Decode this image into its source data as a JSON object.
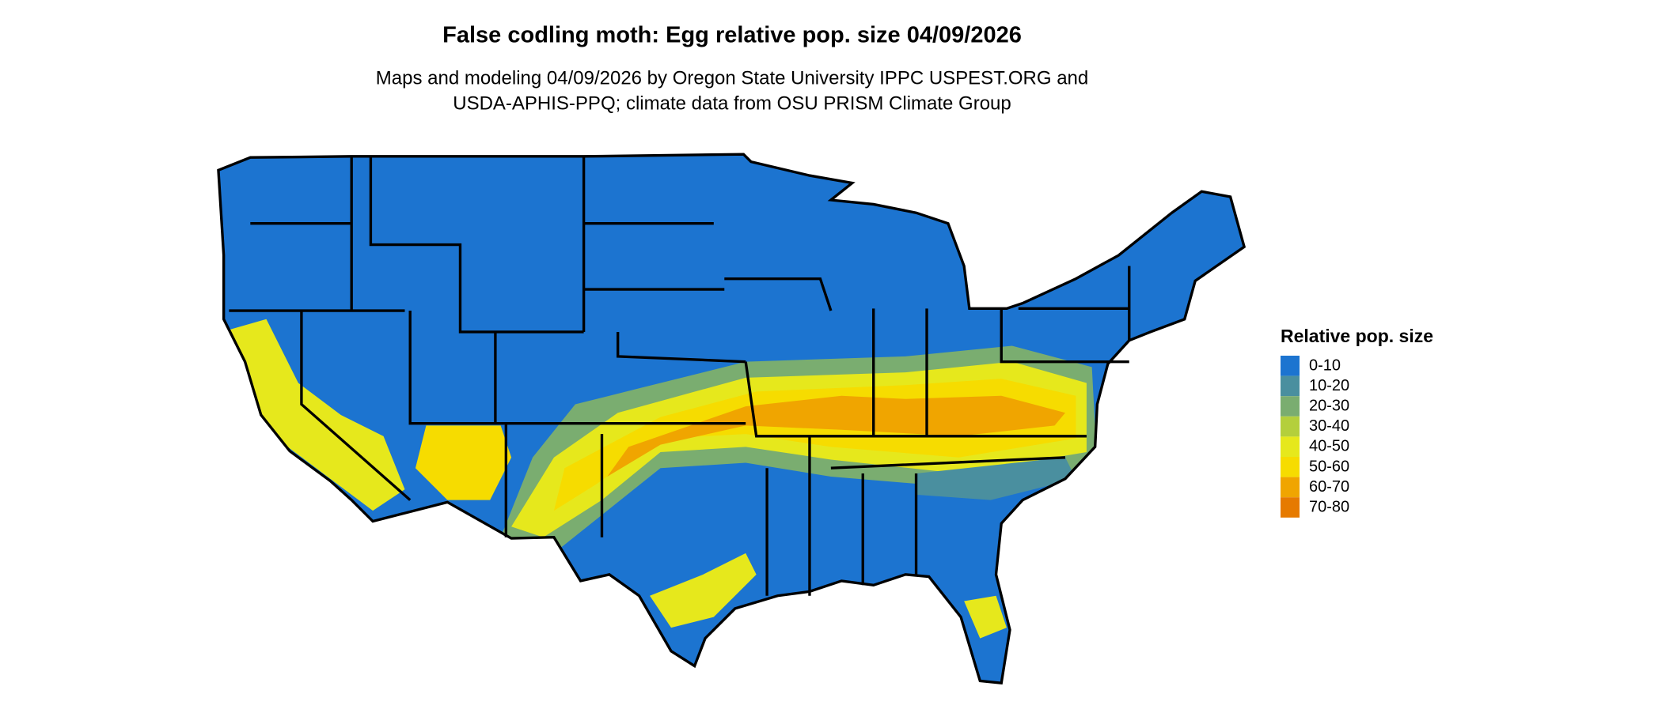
{
  "header": {
    "title": "False codling moth: Egg relative pop. size 04/09/2026",
    "subtitle": [
      "Maps and modeling 04/09/2026 by Oregon State University IPPC USPEST.ORG and",
      "USDA-APHIS-PPQ; climate data from OSU PRISM Climate Group"
    ]
  },
  "legend": {
    "title": "Relative pop. size",
    "items": [
      {
        "label": "0-10",
        "color": "#1c74d0"
      },
      {
        "label": "10-20",
        "color": "#4a8f9f"
      },
      {
        "label": "20-30",
        "color": "#7aad70"
      },
      {
        "label": "30-40",
        "color": "#b4cf3c"
      },
      {
        "label": "40-50",
        "color": "#e6e81c"
      },
      {
        "label": "50-60",
        "color": "#f6dc00"
      },
      {
        "label": "60-70",
        "color": "#f0a500"
      },
      {
        "label": "70-80",
        "color": "#e67a00"
      }
    ]
  }
}
